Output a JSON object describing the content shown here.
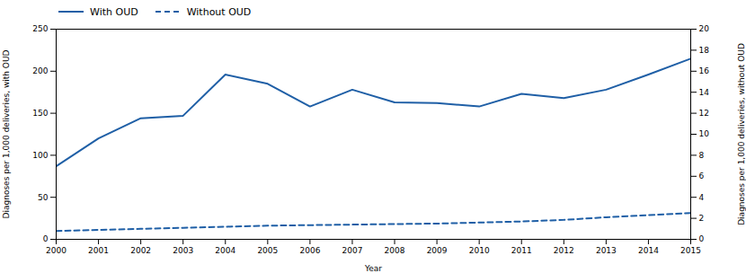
{
  "chart_data": {
    "type": "line",
    "x": [
      2000,
      2001,
      2002,
      2003,
      2004,
      2005,
      2006,
      2007,
      2008,
      2009,
      2010,
      2011,
      2012,
      2013,
      2014,
      2015
    ],
    "series": [
      {
        "name": "With OUD",
        "color": "#1F5FA6",
        "line_style": "solid",
        "values": [
          87,
          120,
          144,
          147,
          196,
          185,
          158,
          178,
          163,
          162,
          158,
          173,
          168,
          178,
          196,
          215
        ]
      },
      {
        "name": "Without OUD",
        "color": "#1F5FA6",
        "line_style": "dashed",
        "axis": "y2",
        "values": [
          0.8,
          0.9,
          1.0,
          1.1,
          1.2,
          1.3,
          1.35,
          1.4,
          1.45,
          1.5,
          1.6,
          1.7,
          1.85,
          2.1,
          2.3,
          2.5
        ]
      }
    ],
    "xlabel": "Year",
    "ylabel": "Diagnoses per 1,000 deliveries, with OUD",
    "y2label": "Diagnoses per 1,000 deliveries, without OUD",
    "xlim": [
      2000,
      2015
    ],
    "xticks": [
      2000,
      2001,
      2002,
      2003,
      2004,
      2005,
      2006,
      2007,
      2008,
      2009,
      2010,
      2011,
      2012,
      2013,
      2014,
      2015
    ],
    "ylim": [
      0,
      250
    ],
    "yticks": [
      0,
      50,
      100,
      150,
      200,
      250
    ],
    "y2lim": [
      0,
      20
    ],
    "y2ticks": [
      0,
      2,
      4,
      6,
      8,
      10,
      12,
      14,
      16,
      18,
      20
    ],
    "legend": "upper left",
    "grid": false
  }
}
